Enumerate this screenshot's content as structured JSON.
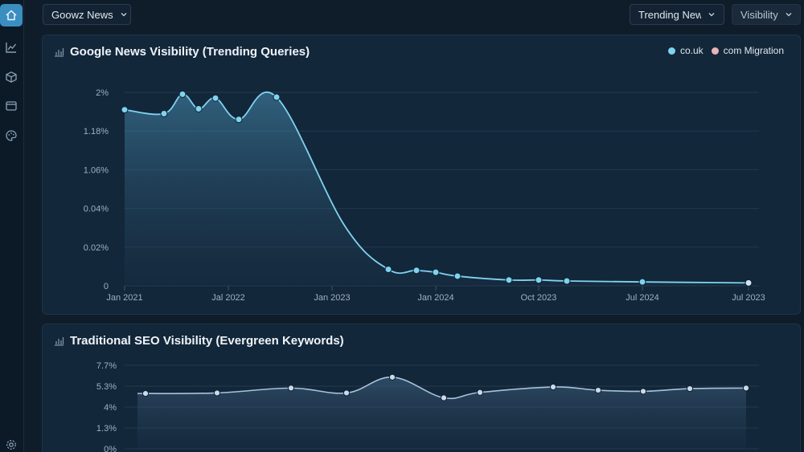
{
  "header": {
    "site_select": "Goowz News",
    "segment_select": "Trending News",
    "metric_select": "Visibility"
  },
  "sidebar": {
    "items": [
      {
        "icon": "home-icon",
        "active": true
      },
      {
        "icon": "line-chart-icon",
        "active": false
      },
      {
        "icon": "cube-icon",
        "active": false
      },
      {
        "icon": "window-icon",
        "active": false
      },
      {
        "icon": "palette-icon",
        "active": false
      }
    ],
    "bottom_icon": "settings-icon"
  },
  "colors": {
    "accent": "#7fd3ef",
    "secondary": "#e8b4b8",
    "evergreen_line": "#a9c3dc",
    "active_nav": "#3b8fc0"
  },
  "charts": {
    "news": {
      "title": "Google News Visibility (Trending Queries)",
      "legend": [
        {
          "label": "co.uk",
          "color": "#7fd3ef"
        },
        {
          "label": "com Migration",
          "color": "#e8b4b8"
        }
      ]
    },
    "seo": {
      "title": "Traditional SEO Visibility (Evergreen Keywords)"
    }
  },
  "chart_data": [
    {
      "type": "area",
      "title": "Google News Visibility (Trending Queries)",
      "y_tick_labels": [
        "0",
        "0.02%",
        "0.04%",
        "1.06%",
        "1.18%",
        "2%"
      ],
      "x_tick_labels": [
        "Jan 2021",
        "Jal 2022",
        "Jan 2023",
        "Jan 2024",
        "Oct 2023",
        "Jul 2024",
        "Jul 2023"
      ],
      "grid": true,
      "legend_position": "top-right",
      "series": [
        {
          "name": "co.uk",
          "x": [
            "2021-01",
            "2021-05",
            "2021-07",
            "2021-09",
            "2021-11",
            "2022-02",
            "2022-07",
            "2023-01",
            "2023-07",
            "2023-10",
            "2023-12",
            "2024-03",
            "2024-08",
            "2024-11",
            "2025-02",
            "2025-10",
            "2026-09"
          ],
          "values": [
            1.82,
            1.78,
            1.98,
            1.83,
            1.94,
            1.72,
            1.95,
            0.63,
            0.17,
            0.16,
            0.14,
            0.1,
            0.06,
            0.06,
            0.05,
            0.04,
            0.03
          ]
        }
      ]
    },
    {
      "type": "area",
      "title": "Traditional SEO Visibility (Evergreen Keywords)",
      "y_tick_labels": [
        "0%",
        "1.3%",
        "4%",
        "5.3%",
        "7.7%"
      ],
      "grid": true,
      "series": [
        {
          "values": [
            5.1,
            5.15,
            5.6,
            5.15,
            6.6,
            4.7,
            5.2,
            5.7,
            5.4,
            5.3,
            5.55,
            5.6
          ]
        }
      ]
    }
  ]
}
